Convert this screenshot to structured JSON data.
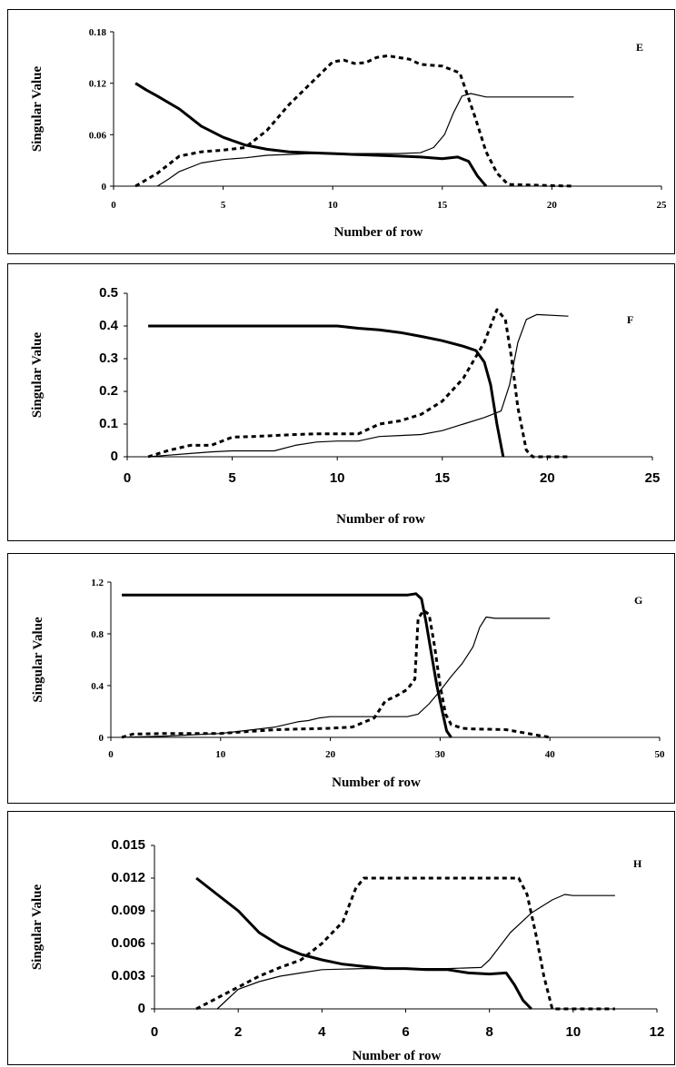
{
  "chart_data": [
    {
      "type": "line",
      "panel_label": "E",
      "xlabel": "Number of row",
      "ylabel": "Singular Value",
      "xlim": [
        0,
        25
      ],
      "ylim": [
        0,
        0.18
      ],
      "xticks": [
        0,
        5,
        10,
        15,
        20,
        25
      ],
      "yticks": [
        0,
        0.06,
        0.12,
        0.18
      ],
      "ytick_labels": [
        "0",
        "0.06",
        "0.12",
        "0.18"
      ],
      "series": [
        {
          "style": "thick",
          "x": [
            1,
            1.5,
            2,
            3,
            4,
            5,
            6,
            7,
            8,
            9,
            10,
            11,
            12,
            13,
            14,
            15,
            15.7,
            16.2,
            16.6,
            17
          ],
          "y": [
            0.12,
            0.112,
            0.105,
            0.09,
            0.07,
            0.057,
            0.048,
            0.043,
            0.04,
            0.039,
            0.038,
            0.037,
            0.036,
            0.035,
            0.034,
            0.032,
            0.034,
            0.029,
            0.012,
            0.0
          ]
        },
        {
          "style": "dashed",
          "x": [
            1,
            2,
            3,
            4,
            5,
            6,
            7,
            8,
            9,
            10,
            10.5,
            11,
            11.5,
            12,
            12.5,
            13,
            13.5,
            14,
            15,
            15.8,
            16.1,
            16.5,
            17,
            17.5,
            18,
            21
          ],
          "y": [
            0.0,
            0.015,
            0.035,
            0.04,
            0.042,
            0.045,
            0.065,
            0.095,
            0.12,
            0.145,
            0.147,
            0.143,
            0.144,
            0.15,
            0.152,
            0.15,
            0.148,
            0.142,
            0.14,
            0.132,
            0.11,
            0.08,
            0.04,
            0.015,
            0.002,
            0.0
          ]
        },
        {
          "style": "thin",
          "x": [
            2,
            2.5,
            3,
            4,
            5,
            6,
            7,
            8,
            9,
            10,
            11,
            12,
            13,
            14,
            14.6,
            15.1,
            15.5,
            15.9,
            16.3,
            17,
            21
          ],
          "y": [
            0.0,
            0.008,
            0.017,
            0.027,
            0.031,
            0.033,
            0.036,
            0.037,
            0.038,
            0.038,
            0.038,
            0.038,
            0.038,
            0.039,
            0.045,
            0.06,
            0.085,
            0.105,
            0.108,
            0.104,
            0.104
          ]
        }
      ]
    },
    {
      "type": "line",
      "panel_label": "F",
      "xlabel": "Number of row",
      "ylabel": "Singular Value",
      "xlim": [
        0,
        25
      ],
      "ylim": [
        0,
        0.5
      ],
      "xticks": [
        0,
        5,
        10,
        15,
        20,
        25
      ],
      "yticks": [
        0,
        0.1,
        0.2,
        0.3,
        0.4,
        0.5
      ],
      "ytick_labels": [
        "0",
        "0.1",
        "0.2",
        "0.3",
        "0.4",
        "0.5"
      ],
      "series": [
        {
          "style": "thick",
          "x": [
            1,
            5,
            10,
            11,
            12,
            13,
            14,
            15,
            16,
            16.6,
            17,
            17.3,
            17.6,
            17.9
          ],
          "y": [
            0.4,
            0.4,
            0.4,
            0.393,
            0.388,
            0.38,
            0.368,
            0.355,
            0.338,
            0.325,
            0.29,
            0.22,
            0.1,
            0.0
          ]
        },
        {
          "style": "dashed",
          "x": [
            1,
            2,
            3,
            4,
            5,
            6,
            7,
            8,
            9,
            10,
            11,
            12,
            13,
            14,
            15,
            16,
            17,
            17.6,
            18,
            18.3,
            18.6,
            19,
            19.3,
            21
          ],
          "y": [
            0.0,
            0.02,
            0.035,
            0.035,
            0.06,
            0.062,
            0.065,
            0.068,
            0.07,
            0.07,
            0.07,
            0.1,
            0.11,
            0.13,
            0.17,
            0.24,
            0.35,
            0.45,
            0.42,
            0.3,
            0.15,
            0.02,
            0.0,
            0.0
          ]
        },
        {
          "style": "thin",
          "x": [
            1,
            2,
            3,
            4,
            5,
            6,
            7,
            8,
            9,
            10,
            11,
            12,
            13,
            14,
            15,
            16,
            17,
            17.8,
            18.2,
            18.6,
            19,
            19.5,
            21
          ],
          "y": [
            0.0,
            0.005,
            0.01,
            0.015,
            0.018,
            0.018,
            0.018,
            0.035,
            0.045,
            0.048,
            0.048,
            0.062,
            0.065,
            0.068,
            0.08,
            0.1,
            0.12,
            0.14,
            0.22,
            0.35,
            0.42,
            0.435,
            0.43
          ]
        }
      ]
    },
    {
      "type": "line",
      "panel_label": "G",
      "xlabel": "Number of row",
      "ylabel": "Singular Value",
      "xlim": [
        0,
        50
      ],
      "ylim": [
        0,
        1.2
      ],
      "xticks": [
        0,
        10,
        20,
        30,
        40,
        50
      ],
      "yticks": [
        0,
        0.4,
        0.8,
        1.2
      ],
      "ytick_labels": [
        "0",
        "0.4",
        "0.8",
        "1.2"
      ],
      "series": [
        {
          "style": "thick",
          "x": [
            1,
            10,
            20,
            27,
            27.8,
            28.3,
            28.7,
            29.2,
            29.7,
            30.2,
            30.6,
            31
          ],
          "y": [
            1.1,
            1.1,
            1.1,
            1.1,
            1.11,
            1.07,
            0.9,
            0.65,
            0.4,
            0.2,
            0.05,
            0.0
          ]
        },
        {
          "style": "dashed",
          "x": [
            1,
            2,
            5,
            10,
            15,
            20,
            22,
            24,
            25,
            26,
            27,
            27.7,
            28,
            28.5,
            29,
            29.5,
            30,
            30.5,
            31,
            32,
            33,
            36,
            40
          ],
          "y": [
            0.0,
            0.025,
            0.03,
            0.03,
            0.06,
            0.07,
            0.08,
            0.15,
            0.28,
            0.32,
            0.37,
            0.45,
            0.92,
            0.98,
            0.95,
            0.7,
            0.4,
            0.18,
            0.1,
            0.07,
            0.065,
            0.06,
            0.0
          ]
        },
        {
          "style": "thin",
          "x": [
            1,
            5,
            10,
            12,
            15,
            17,
            18,
            19,
            20,
            22,
            25,
            27,
            28,
            29,
            30,
            31,
            32,
            33,
            33.6,
            34.2,
            35,
            40
          ],
          "y": [
            0.0,
            0.01,
            0.03,
            0.05,
            0.08,
            0.12,
            0.13,
            0.15,
            0.16,
            0.16,
            0.16,
            0.16,
            0.18,
            0.26,
            0.36,
            0.47,
            0.57,
            0.7,
            0.85,
            0.93,
            0.92,
            0.92
          ]
        }
      ]
    },
    {
      "type": "line",
      "panel_label": "H",
      "xlabel": "Number of row",
      "ylabel": "Singular Value",
      "xlim": [
        0,
        12
      ],
      "ylim": [
        0,
        0.015
      ],
      "xticks": [
        0,
        2,
        4,
        6,
        8,
        10,
        12
      ],
      "yticks": [
        0,
        0.003,
        0.006,
        0.009,
        0.012,
        0.015
      ],
      "ytick_labels": [
        "0",
        "0.003",
        "0.006",
        "0.009",
        "0.012",
        "0.015"
      ],
      "series": [
        {
          "style": "thick",
          "x": [
            1,
            1.5,
            2,
            2.5,
            3,
            3.5,
            4,
            4.5,
            5,
            5.5,
            6,
            6.5,
            7,
            7.5,
            8,
            8.4,
            8.6,
            8.8,
            9
          ],
          "y": [
            0.012,
            0.0105,
            0.009,
            0.007,
            0.0058,
            0.005,
            0.0045,
            0.0041,
            0.0039,
            0.0037,
            0.0037,
            0.0036,
            0.0036,
            0.0033,
            0.0032,
            0.0033,
            0.0022,
            0.0008,
            0.0
          ]
        },
        {
          "style": "dashed",
          "x": [
            1,
            1.5,
            2,
            2.5,
            3,
            3.5,
            4,
            4.5,
            4.8,
            5,
            6,
            7,
            8,
            8.7,
            8.9,
            9.1,
            9.3,
            9.5,
            10,
            11
          ],
          "y": [
            0.0,
            0.001,
            0.002,
            0.003,
            0.0038,
            0.0045,
            0.006,
            0.008,
            0.011,
            0.012,
            0.012,
            0.012,
            0.012,
            0.012,
            0.0105,
            0.007,
            0.003,
            0.0,
            0.0,
            0.0
          ]
        },
        {
          "style": "thin",
          "x": [
            1.5,
            2,
            2.5,
            3,
            3.5,
            4,
            5,
            6,
            7,
            7.8,
            8,
            8.5,
            9,
            9.5,
            9.8,
            10,
            11
          ],
          "y": [
            0.0,
            0.0018,
            0.0025,
            0.003,
            0.0033,
            0.0036,
            0.0037,
            0.0037,
            0.0037,
            0.0038,
            0.0045,
            0.007,
            0.0088,
            0.01,
            0.0105,
            0.0104,
            0.0104
          ]
        }
      ]
    }
  ]
}
